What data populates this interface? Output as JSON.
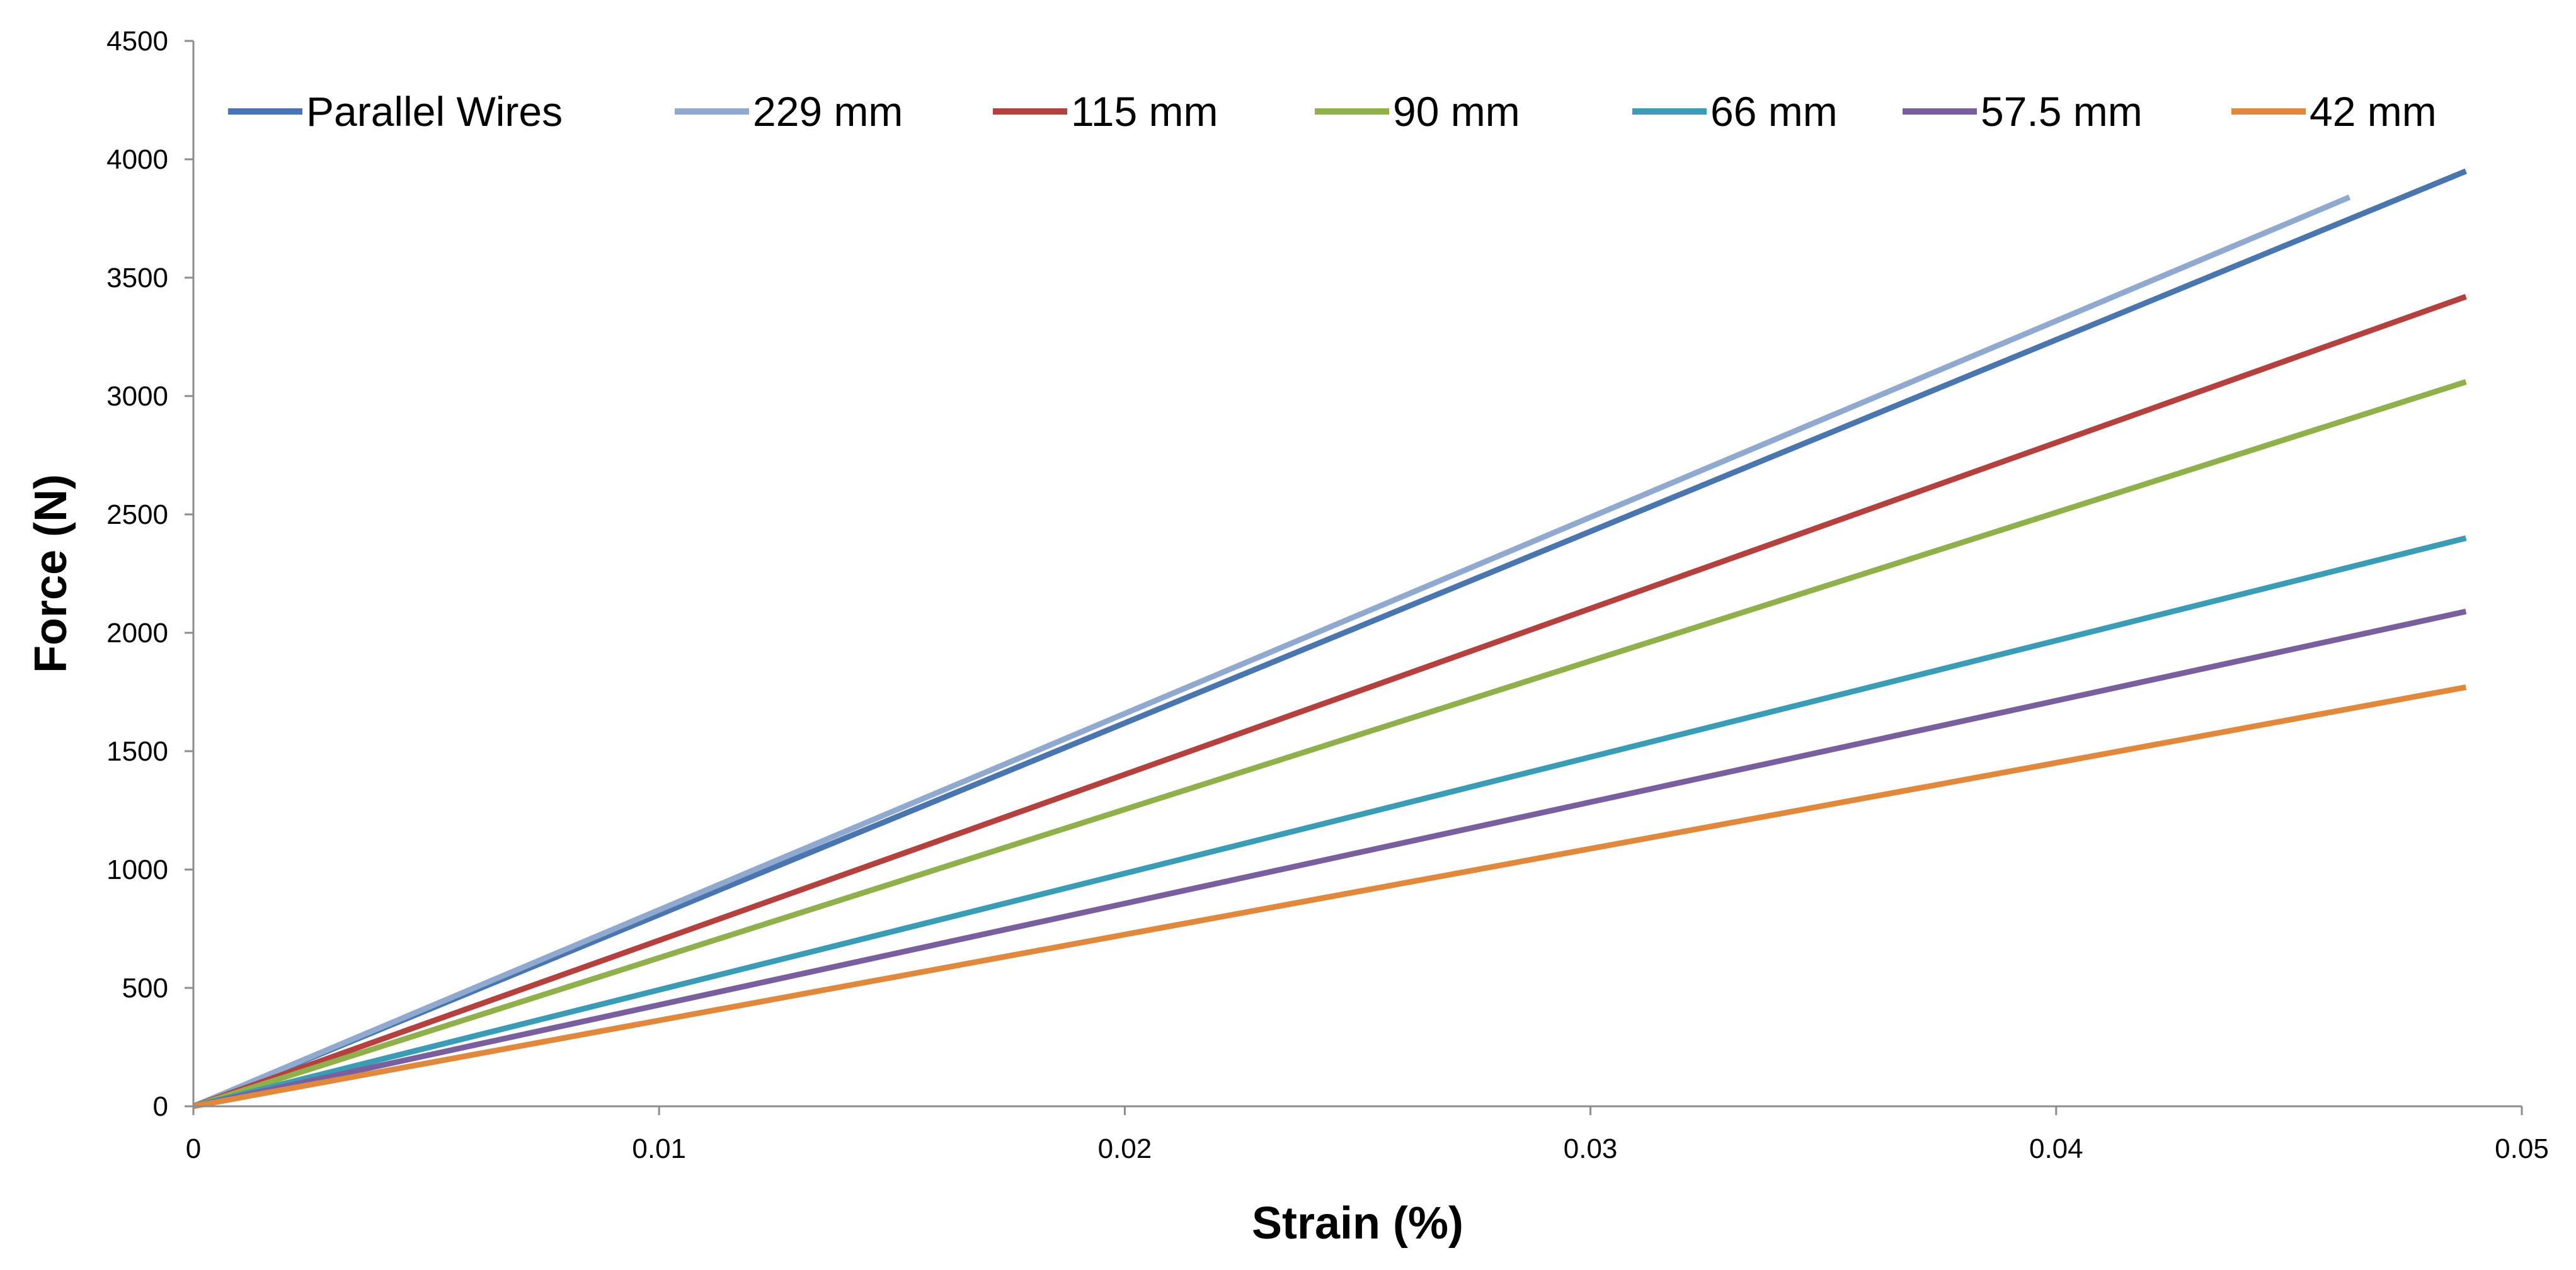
{
  "chart_data": {
    "type": "line",
    "title": "",
    "xlabel": "Strain (%)",
    "ylabel": "Force (N)",
    "xlim": [
      0,
      0.05
    ],
    "ylim": [
      0,
      4500
    ],
    "x_ticks": [
      0,
      0.01,
      0.02,
      0.03,
      0.04,
      0.05
    ],
    "x_tick_labels": [
      "0",
      "0.01",
      "0.02",
      "0.03",
      "0.04",
      "0.05"
    ],
    "y_ticks": [
      0,
      500,
      1000,
      1500,
      2000,
      2500,
      3000,
      3500,
      4000,
      4500
    ],
    "y_tick_labels": [
      "0",
      "500",
      "1000",
      "1500",
      "2000",
      "2500",
      "3000",
      "3500",
      "4000",
      "4500"
    ],
    "grid": false,
    "legend_position": "top",
    "series": [
      {
        "name": "Parallel Wires",
        "color": "#4a76b0",
        "x": [
          0,
          0.0488
        ],
        "y": [
          0,
          3950
        ]
      },
      {
        "name": "229 mm",
        "color": "#90aacf",
        "x": [
          0,
          0.0463
        ],
        "y": [
          0,
          3840
        ]
      },
      {
        "name": "115 mm",
        "color": "#b5413f",
        "x": [
          0,
          0.0488
        ],
        "y": [
          0,
          3420
        ]
      },
      {
        "name": "90 mm",
        "color": "#8fb04a",
        "x": [
          0,
          0.0488
        ],
        "y": [
          0,
          3060
        ]
      },
      {
        "name": "66 mm",
        "color": "#3a9cb5",
        "x": [
          0,
          0.0488
        ],
        "y": [
          0,
          2400
        ]
      },
      {
        "name": "57.5 mm",
        "color": "#7a5f9e",
        "x": [
          0,
          0.0488
        ],
        "y": [
          0,
          2090
        ]
      },
      {
        "name": "42 mm",
        "color": "#e0893c",
        "x": [
          0,
          0.0488
        ],
        "y": [
          0,
          1770
        ]
      }
    ]
  }
}
